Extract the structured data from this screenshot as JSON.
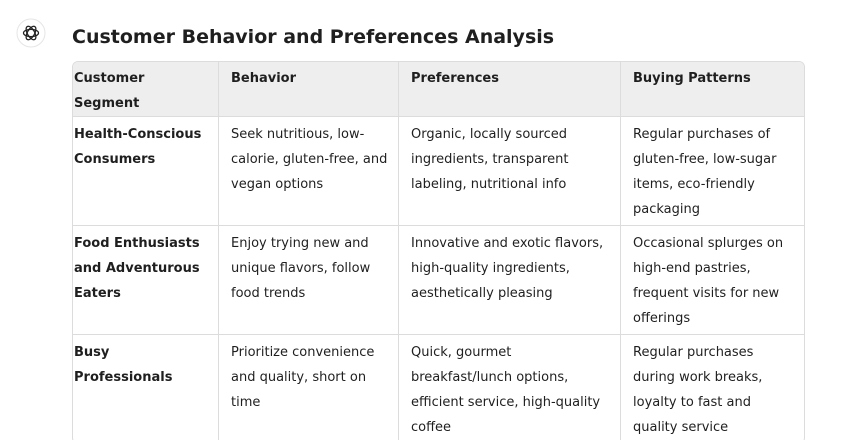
{
  "header": {
    "title": "Customer Behavior and Preferences Analysis"
  },
  "table": {
    "columns": [
      "Customer Segment",
      "Behavior",
      "Preferences",
      "Buying Patterns"
    ],
    "rows": [
      [
        "Health-Conscious Consumers",
        "Seek nutritious, low-calorie, gluten-free, and vegan options",
        "Organic, locally sourced ingredients, transparent labeling, nutritional info",
        "Regular purchases of gluten-free, low-sugar items, eco-friendly packaging"
      ],
      [
        "Food Enthusiasts and Adventurous Eaters",
        "Enjoy trying new and unique flavors, follow food trends",
        "Innovative and exotic flavors, high-quality ingredients, aesthetically pleasing",
        "Occasional splurges on high-end pastries, frequent visits for new offerings"
      ],
      [
        "Busy Professionals",
        "Prioritize convenience and quality, short on time",
        "Quick, gourmet breakfast/lunch options, efficient service, high-quality coffee",
        "Regular purchases during work breaks, loyalty to fast and quality service"
      ]
    ]
  }
}
